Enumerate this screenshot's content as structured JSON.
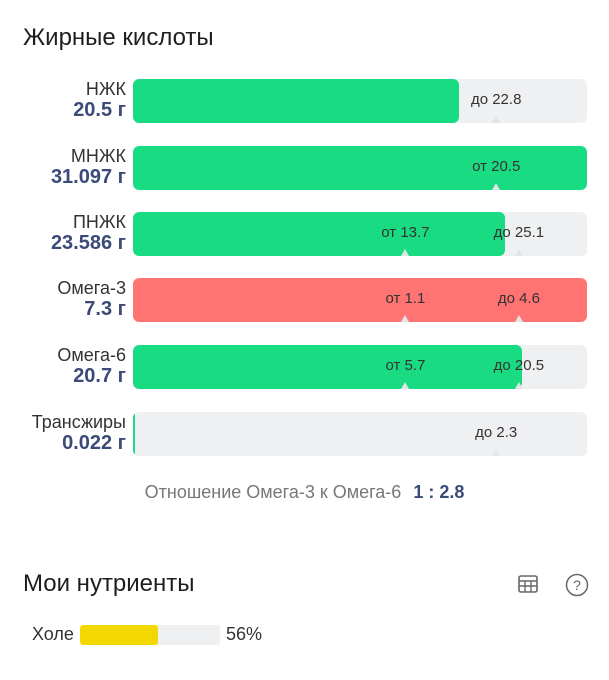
{
  "title": "Жирные кислоты",
  "colors": {
    "ok": "#19dc82",
    "bad": "#ff7373",
    "track": "#eff0f2",
    "value": "#3b4a78",
    "nutrient": "#f2d800"
  },
  "rows": [
    {
      "name": "НЖК",
      "value": "20.5 г",
      "fill": 0.718,
      "status": "ok",
      "markers": [
        {
          "label": "до 22.8",
          "position": 0.8
        }
      ]
    },
    {
      "name": "МНЖК",
      "value": "31.097 г",
      "fill": 1.0,
      "status": "ok",
      "markers": [
        {
          "label": "от 20.5",
          "position": 0.8
        }
      ]
    },
    {
      "name": "ПНЖК",
      "value": "23.586 г",
      "fill": 0.82,
      "status": "ok",
      "markers": [
        {
          "label": "от 13.7",
          "position": 0.6
        },
        {
          "label": "до 25.1",
          "position": 0.85
        }
      ]
    },
    {
      "name": "Омега-3",
      "value": "7.3 г",
      "fill": 1.0,
      "status": "bad",
      "markers": [
        {
          "label": "от 1.1",
          "position": 0.6
        },
        {
          "label": "до 4.6",
          "position": 0.85
        }
      ]
    },
    {
      "name": "Омега-6",
      "value": "20.7 г",
      "fill": 0.857,
      "status": "ok",
      "markers": [
        {
          "label": "от 5.7",
          "position": 0.6
        },
        {
          "label": "до 20.5",
          "position": 0.85
        }
      ]
    },
    {
      "name": "Трансжиры",
      "value": "0.022 г",
      "fill": 0.005,
      "status": "ok",
      "markers": [
        {
          "label": "до 2.3",
          "position": 0.8
        }
      ]
    }
  ],
  "ratio": {
    "label": "Отношение Омега-3 к Омега-6",
    "value": "1 : 2.8"
  },
  "nutrients": {
    "title": "Мои нутриенты",
    "icons": [
      "table-icon",
      "help-icon"
    ],
    "items": [
      {
        "name": "Холе",
        "percent": "56%",
        "fill": 0.56
      }
    ]
  }
}
